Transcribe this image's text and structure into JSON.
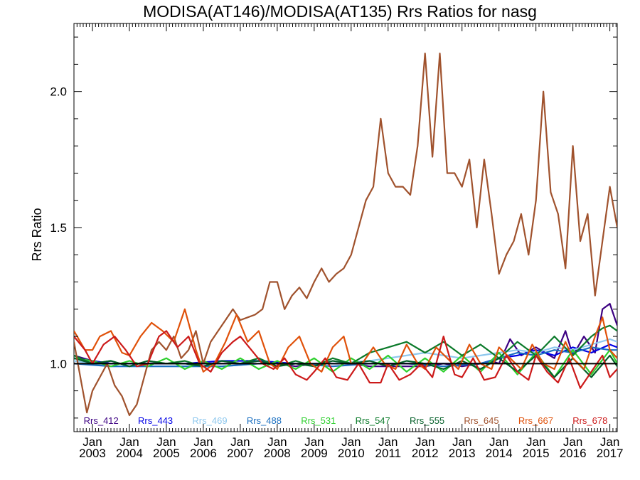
{
  "chart_data": {
    "type": "line",
    "title": "MODISA(AT146)/MODISA(AT135)  Rrs Ratios for nasg",
    "xlabel": "",
    "ylabel": "Rrs Ratio",
    "xlim": [
      2002.5,
      2017.2
    ],
    "ylim": [
      0.75,
      2.25
    ],
    "yticks": [
      1.0,
      1.5,
      2.0
    ],
    "ytick_labels": [
      "1.0",
      "1.5",
      "2.0"
    ],
    "xticks": [
      2003,
      2004,
      2005,
      2006,
      2007,
      2008,
      2009,
      2010,
      2011,
      2012,
      2013,
      2014,
      2015,
      2016,
      2017
    ],
    "xtick_labels": [
      {
        "month": "Jan",
        "year": "2003"
      },
      {
        "month": "Jan",
        "year": "2004"
      },
      {
        "month": "Jan",
        "year": "2005"
      },
      {
        "month": "Jan",
        "year": "2006"
      },
      {
        "month": "Jan",
        "year": "2007"
      },
      {
        "month": "Jan",
        "year": "2008"
      },
      {
        "month": "Jan",
        "year": "2009"
      },
      {
        "month": "Jan",
        "year": "2010"
      },
      {
        "month": "Jan",
        "year": "2011"
      },
      {
        "month": "Jan",
        "year": "2012"
      },
      {
        "month": "Jan",
        "year": "2013"
      },
      {
        "month": "Jan",
        "year": "2014"
      },
      {
        "month": "Jan",
        "year": "2015"
      },
      {
        "month": "Jan",
        "year": "2016"
      },
      {
        "month": "Jan",
        "year": "2017"
      }
    ],
    "grid": false,
    "reference_line": 1.0,
    "legend_position": "bottom",
    "series": [
      {
        "name": "Rrs_412",
        "color": "#3c0082",
        "x": [
          2002.5,
          2003.0,
          2003.5,
          2004.0,
          2004.5,
          2005.0,
          2005.5,
          2006.0,
          2006.5,
          2007.0,
          2007.5,
          2008.0,
          2008.5,
          2009.0,
          2009.5,
          2010.0,
          2010.5,
          2011.0,
          2011.5,
          2012.0,
          2012.5,
          2013.0,
          2013.5,
          2013.8,
          2014.0,
          2014.3,
          2014.6,
          2015.0,
          2015.5,
          2015.8,
          2016.0,
          2016.3,
          2016.6,
          2016.8,
          2017.0,
          2017.2
        ],
        "y": [
          1.03,
          1.01,
          1.0,
          1.0,
          1.0,
          1.0,
          1.0,
          1.0,
          1.0,
          1.0,
          1.01,
          1.0,
          0.99,
          1.0,
          1.0,
          1.0,
          0.99,
          0.99,
          0.99,
          0.99,
          1.0,
          0.99,
          1.0,
          1.01,
          1.0,
          1.09,
          1.03,
          1.06,
          1.02,
          1.12,
          1.03,
          1.1,
          1.04,
          1.2,
          1.22,
          1.14
        ]
      },
      {
        "name": "Rrs_443",
        "color": "#0000e6",
        "x": [
          2002.5,
          2003.5,
          2004.5,
          2005.5,
          2006.5,
          2007.5,
          2008.5,
          2009.5,
          2010.5,
          2011.5,
          2012.5,
          2013.5,
          2014.0,
          2014.5,
          2015.0,
          2015.5,
          2016.0,
          2016.5,
          2017.0,
          2017.2
        ],
        "y": [
          1.02,
          1.0,
          1.0,
          1.0,
          1.01,
          1.01,
          1.0,
          1.0,
          1.0,
          1.0,
          1.0,
          1.0,
          1.02,
          1.03,
          1.05,
          1.03,
          1.06,
          1.04,
          1.07,
          1.06
        ]
      },
      {
        "name": "Rrs_469",
        "color": "#8ec8ee",
        "x": [
          2002.5,
          2003.5,
          2004.5,
          2005.5,
          2006.5,
          2007.5,
          2008.5,
          2009.5,
          2010.5,
          2011.0,
          2011.5,
          2012.0,
          2012.5,
          2013.0,
          2013.5,
          2014.0,
          2014.5,
          2015.0,
          2015.5,
          2016.0,
          2016.5,
          2017.0,
          2017.2
        ],
        "y": [
          1.01,
          0.99,
          0.99,
          0.99,
          0.99,
          1.0,
          1.0,
          1.0,
          1.01,
          1.02,
          1.03,
          1.04,
          1.03,
          1.02,
          1.03,
          1.04,
          1.05,
          1.04,
          1.06,
          1.05,
          1.07,
          1.09,
          1.08
        ]
      },
      {
        "name": "Rrs_488",
        "color": "#1a6fc0",
        "x": [
          2002.5,
          2003.5,
          2004.5,
          2005.5,
          2006.5,
          2007.5,
          2008.5,
          2009.5,
          2010.5,
          2011.5,
          2012.5,
          2013.5,
          2014.0,
          2014.5,
          2015.0,
          2015.5,
          2016.0,
          2016.5,
          2017.0,
          2017.2
        ],
        "y": [
          1.0,
          0.99,
          0.99,
          0.99,
          0.99,
          1.0,
          1.0,
          0.99,
          1.0,
          1.0,
          0.99,
          1.0,
          1.02,
          1.04,
          1.03,
          1.05,
          1.04,
          1.06,
          1.05,
          1.05
        ]
      },
      {
        "name": "Rrs_531",
        "color": "#2ed02e",
        "x": [
          2002.5,
          2003.0,
          2003.5,
          2004.0,
          2004.5,
          2005.0,
          2005.5,
          2006.0,
          2006.5,
          2007.0,
          2007.5,
          2008.0,
          2008.5,
          2009.0,
          2009.5,
          2010.0,
          2010.5,
          2011.0,
          2011.5,
          2012.0,
          2012.5,
          2013.0,
          2013.5,
          2014.0,
          2014.5,
          2015.0,
          2015.5,
          2016.0,
          2016.5,
          2017.0,
          2017.2
        ],
        "y": [
          1.02,
          1.01,
          0.99,
          1.01,
          0.99,
          1.02,
          0.98,
          1.01,
          0.98,
          1.02,
          0.98,
          1.01,
          0.98,
          1.02,
          0.97,
          1.02,
          0.98,
          1.03,
          0.97,
          1.02,
          0.97,
          1.03,
          0.97,
          1.04,
          0.96,
          1.04,
          0.95,
          1.05,
          0.96,
          1.05,
          1.0
        ]
      },
      {
        "name": "Rrs_547",
        "color": "#0b7a2a",
        "x": [
          2002.5,
          2003.0,
          2003.5,
          2004.0,
          2004.5,
          2005.0,
          2005.5,
          2006.0,
          2006.5,
          2007.0,
          2007.5,
          2008.0,
          2008.5,
          2009.0,
          2009.5,
          2010.0,
          2010.5,
          2011.0,
          2011.5,
          2012.0,
          2012.5,
          2013.0,
          2013.5,
          2014.0,
          2014.5,
          2015.0,
          2015.5,
          2016.0,
          2016.5,
          2016.8,
          2017.0,
          2017.2
        ],
        "y": [
          1.03,
          1.0,
          1.01,
          0.99,
          1.01,
          1.0,
          1.01,
          0.99,
          1.01,
          1.0,
          1.02,
          0.99,
          1.01,
          0.99,
          1.02,
          1.0,
          1.04,
          1.06,
          1.08,
          1.04,
          1.08,
          1.03,
          1.07,
          1.02,
          1.08,
          1.03,
          1.1,
          1.03,
          1.1,
          1.13,
          1.14,
          1.12
        ]
      },
      {
        "name": "Rrs_555",
        "color": "#05602a",
        "x": [
          2002.5,
          2003.0,
          2003.5,
          2004.0,
          2004.5,
          2005.0,
          2005.5,
          2006.0,
          2006.5,
          2007.0,
          2007.5,
          2008.0,
          2008.5,
          2009.0,
          2009.5,
          2010.0,
          2010.5,
          2011.0,
          2011.5,
          2012.0,
          2012.5,
          2013.0,
          2013.5,
          2014.0,
          2014.5,
          2015.0,
          2015.5,
          2016.0,
          2016.5,
          2017.0,
          2017.2
        ],
        "y": [
          1.02,
          1.0,
          1.01,
          0.99,
          1.01,
          1.0,
          1.0,
          0.99,
          1.01,
          1.0,
          1.01,
          0.99,
          1.0,
          0.99,
          1.01,
          1.0,
          1.01,
          0.99,
          1.01,
          1.0,
          0.98,
          1.01,
          0.98,
          1.02,
          0.97,
          1.03,
          0.95,
          1.02,
          0.95,
          1.03,
          0.99
        ]
      },
      {
        "name": "Rrs_645",
        "color": "#a0522d",
        "x": [
          2002.5,
          2002.7,
          2002.85,
          2003.0,
          2003.2,
          2003.4,
          2003.6,
          2003.8,
          2004.0,
          2004.2,
          2004.4,
          2004.6,
          2004.8,
          2005.0,
          2005.2,
          2005.4,
          2005.6,
          2005.8,
          2006.0,
          2006.2,
          2006.4,
          2006.6,
          2006.8,
          2007.0,
          2007.2,
          2007.4,
          2007.6,
          2007.8,
          2008.0,
          2008.2,
          2008.4,
          2008.6,
          2008.8,
          2009.0,
          2009.2,
          2009.4,
          2009.6,
          2009.8,
          2010.0,
          2010.2,
          2010.4,
          2010.6,
          2010.8,
          2011.0,
          2011.2,
          2011.4,
          2011.6,
          2011.8,
          2012.0,
          2012.2,
          2012.4,
          2012.6,
          2012.8,
          2013.0,
          2013.2,
          2013.4,
          2013.6,
          2013.8,
          2014.0,
          2014.2,
          2014.4,
          2014.6,
          2014.8,
          2015.0,
          2015.2,
          2015.4,
          2015.6,
          2015.8,
          2016.0,
          2016.2,
          2016.4,
          2016.6,
          2016.8,
          2017.0,
          2017.2
        ],
        "y": [
          1.08,
          0.93,
          0.82,
          0.9,
          0.95,
          1.0,
          0.92,
          0.88,
          0.81,
          0.85,
          0.95,
          1.05,
          1.08,
          1.05,
          1.1,
          1.02,
          1.05,
          1.12,
          1.0,
          1.08,
          1.12,
          1.16,
          1.2,
          1.16,
          1.17,
          1.18,
          1.2,
          1.3,
          1.3,
          1.2,
          1.25,
          1.28,
          1.24,
          1.3,
          1.35,
          1.3,
          1.33,
          1.35,
          1.4,
          1.5,
          1.6,
          1.65,
          1.9,
          1.7,
          1.65,
          1.65,
          1.62,
          1.8,
          2.14,
          1.76,
          2.14,
          1.7,
          1.7,
          1.65,
          1.75,
          1.5,
          1.75,
          1.55,
          1.33,
          1.4,
          1.45,
          1.55,
          1.4,
          1.6,
          2.0,
          1.63,
          1.55,
          1.35,
          1.8,
          1.45,
          1.55,
          1.25,
          1.45,
          1.65,
          1.5
        ]
      },
      {
        "name": "Rrs_667",
        "color": "#e0510a",
        "x": [
          2002.5,
          2002.8,
          2003.0,
          2003.2,
          2003.5,
          2003.8,
          2004.0,
          2004.3,
          2004.6,
          2004.9,
          2005.2,
          2005.5,
          2005.8,
          2006.0,
          2006.3,
          2006.6,
          2006.9,
          2007.2,
          2007.5,
          2007.8,
          2008.0,
          2008.3,
          2008.6,
          2008.9,
          2009.2,
          2009.5,
          2009.8,
          2010.0,
          2010.3,
          2010.6,
          2010.9,
          2011.2,
          2011.5,
          2011.8,
          2012.0,
          2012.3,
          2012.6,
          2012.9,
          2013.2,
          2013.5,
          2013.8,
          2014.0,
          2014.3,
          2014.6,
          2014.9,
          2015.2,
          2015.5,
          2015.8,
          2016.0,
          2016.3,
          2016.6,
          2016.8,
          2017.0,
          2017.2
        ],
        "y": [
          1.12,
          1.05,
          1.05,
          1.1,
          1.12,
          1.04,
          1.03,
          1.1,
          1.15,
          1.12,
          1.08,
          1.2,
          1.05,
          0.97,
          1.0,
          1.08,
          1.18,
          1.08,
          1.12,
          1.0,
          0.98,
          1.06,
          1.1,
          1.0,
          0.97,
          1.06,
          1.1,
          1.0,
          1.0,
          1.06,
          1.0,
          0.98,
          1.07,
          1.0,
          0.98,
          1.06,
          1.02,
          0.98,
          1.07,
          1.0,
          0.98,
          1.06,
          1.02,
          0.98,
          1.07,
          1.0,
          0.98,
          1.08,
          1.02,
          0.98,
          1.1,
          1.17,
          1.05,
          1.02
        ]
      },
      {
        "name": "Rrs_678",
        "color": "#cc1a1a",
        "x": [
          2002.5,
          2002.8,
          2003.0,
          2003.3,
          2003.6,
          2003.9,
          2004.2,
          2004.5,
          2004.8,
          2005.0,
          2005.3,
          2005.6,
          2005.9,
          2006.2,
          2006.5,
          2006.8,
          2007.0,
          2007.3,
          2007.6,
          2007.9,
          2008.2,
          2008.5,
          2008.8,
          2009.0,
          2009.3,
          2009.6,
          2009.9,
          2010.2,
          2010.5,
          2010.8,
          2011.0,
          2011.3,
          2011.6,
          2011.9,
          2012.2,
          2012.5,
          2012.8,
          2013.0,
          2013.3,
          2013.6,
          2013.9,
          2014.2,
          2014.5,
          2014.8,
          2015.0,
          2015.3,
          2015.6,
          2015.9,
          2016.2,
          2016.5,
          2016.8,
          2017.0,
          2017.2
        ],
        "y": [
          1.1,
          1.05,
          1.0,
          1.07,
          1.1,
          1.05,
          0.99,
          1.0,
          1.1,
          1.12,
          1.06,
          1.1,
          1.0,
          0.97,
          1.04,
          1.08,
          1.1,
          1.05,
          1.0,
          0.98,
          1.02,
          0.96,
          0.94,
          0.97,
          1.02,
          0.95,
          0.94,
          1.0,
          0.93,
          0.93,
          1.0,
          0.94,
          0.96,
          1.0,
          0.95,
          1.1,
          0.96,
          0.95,
          1.02,
          0.94,
          0.95,
          1.03,
          0.97,
          0.94,
          1.03,
          0.97,
          0.93,
          1.02,
          0.91,
          0.97,
          1.03,
          0.95,
          0.98
        ]
      }
    ]
  }
}
